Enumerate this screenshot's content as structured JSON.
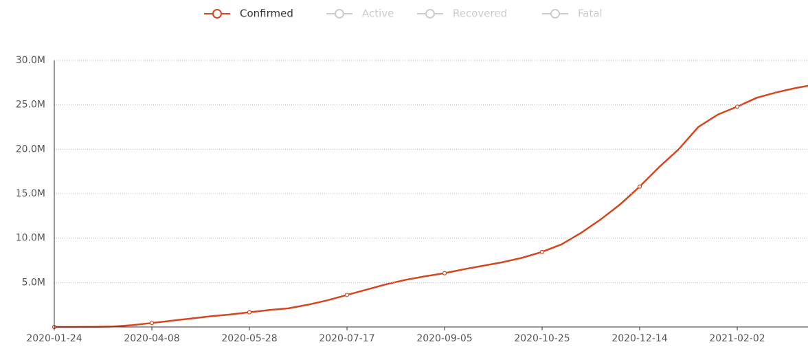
{
  "chart_data": {
    "type": "line",
    "categories": [
      "2020-01-24",
      null,
      null,
      null,
      null,
      "2020-04-08",
      null,
      null,
      null,
      null,
      "2020-05-28",
      null,
      null,
      null,
      null,
      "2020-07-17",
      null,
      null,
      null,
      null,
      "2020-09-05",
      null,
      null,
      null,
      null,
      "2020-10-25",
      null,
      null,
      null,
      null,
      "2020-12-14",
      null,
      null,
      null,
      null,
      "2021-02-02",
      null,
      null,
      null,
      null
    ],
    "series": [
      {
        "name": "Confirmed",
        "color": "#d9441c",
        "values": [
          0,
          0,
          10000,
          50000,
          200000,
          450000,
          700000,
          950000,
          1200000,
          1400000,
          1650000,
          1900000,
          2100000,
          2500000,
          3000000,
          3600000,
          4200000,
          4800000,
          5300000,
          5700000,
          6050000,
          6500000,
          6900000,
          7300000,
          7800000,
          8450000,
          9300000,
          10600000,
          12100000,
          13800000,
          15800000,
          18000000,
          20000000,
          22500000,
          23900000,
          24800000,
          25800000,
          26400000,
          26900000,
          27300000
        ]
      }
    ],
    "inactive_series": [
      "Active",
      "Recovered",
      "Fatal"
    ],
    "inactive_color": "#cccccc",
    "ylim": [
      0,
      30000000
    ],
    "yticks": [
      {
        "value": 5000000,
        "label": "5.0M"
      },
      {
        "value": 10000000,
        "label": "10.0M"
      },
      {
        "value": 15000000,
        "label": "15.0M"
      },
      {
        "value": 20000000,
        "label": "20.0M"
      },
      {
        "value": 25000000,
        "label": "25.0M"
      },
      {
        "value": 30000000,
        "label": "30.0M"
      }
    ],
    "grid": true
  }
}
